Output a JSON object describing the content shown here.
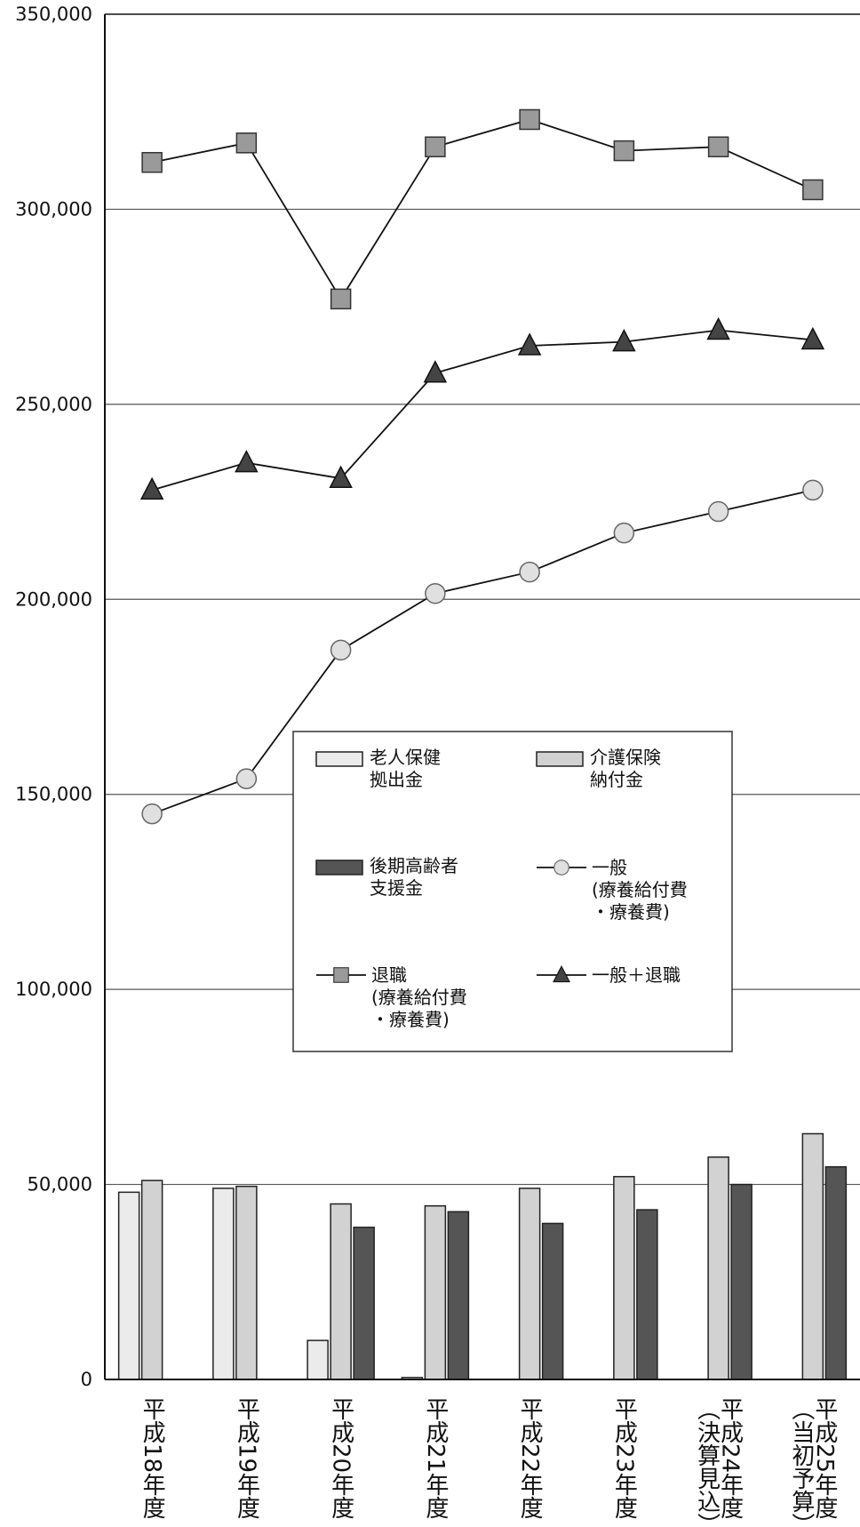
{
  "chart_data": {
    "type": "bar",
    "title": "",
    "xlabel": "",
    "ylabel": "",
    "ylim": [
      0,
      350000
    ],
    "yticks": [
      0,
      50000,
      100000,
      150000,
      200000,
      250000,
      300000,
      350000
    ],
    "ytick_labels": [
      "0",
      "50,000",
      "100,000",
      "150,000",
      "200,000",
      "250,000",
      "300,000",
      "350,000"
    ],
    "grid": true,
    "legend_position": "center",
    "categories": [
      {
        "line1": "平成18年度",
        "line2": ""
      },
      {
        "line1": "平成19年度",
        "line2": ""
      },
      {
        "line1": "平成20年度",
        "line2": ""
      },
      {
        "line1": "平成21年度",
        "line2": ""
      },
      {
        "line1": "平成22年度",
        "line2": ""
      },
      {
        "line1": "平成23年度",
        "line2": ""
      },
      {
        "line1": "平成24年度",
        "line2": "（決算見込）"
      },
      {
        "line1": "平成25年度",
        "line2": "（当初予算）"
      }
    ],
    "bar_series": [
      {
        "name": [
          "老人保健",
          "拠出金"
        ],
        "color": "#ebebeb",
        "values": [
          48000,
          49000,
          10000,
          500,
          0,
          0,
          0,
          0
        ]
      },
      {
        "name": [
          "介護保険",
          "納付金"
        ],
        "color": "#d2d2d2",
        "values": [
          51000,
          49500,
          45000,
          44500,
          49000,
          52000,
          57000,
          63000
        ]
      },
      {
        "name": [
          "後期高齢者",
          "支援金"
        ],
        "color": "#555555",
        "values": [
          0,
          0,
          39000,
          43000,
          40000,
          43500,
          50000,
          54500
        ]
      }
    ],
    "line_series": [
      {
        "name": [
          "一般",
          "(療養給付費",
          "・療養費)"
        ],
        "marker": "circle",
        "color": "#e0e0e0",
        "values": [
          145000,
          154000,
          187000,
          201500,
          207000,
          217000,
          222500,
          228000
        ]
      },
      {
        "name": [
          "退職",
          "(療養給付費",
          "・療養費)"
        ],
        "marker": "square",
        "color": "#9a9a9a",
        "values": [
          312000,
          317000,
          277000,
          316000,
          323000,
          315000,
          316000,
          305000
        ]
      },
      {
        "name": [
          "一般＋退職"
        ],
        "marker": "triangle",
        "color": "#444444",
        "values": [
          228000,
          235000,
          231000,
          258000,
          265000,
          266000,
          269000,
          266500
        ]
      }
    ]
  }
}
